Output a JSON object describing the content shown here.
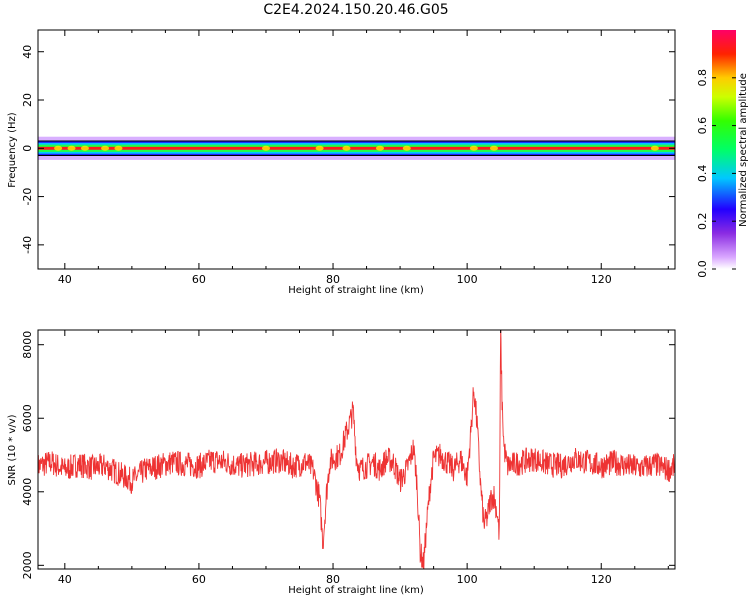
{
  "title": "C2E4.2024.150.20.46.G05",
  "colors": {
    "snr_line": "#ee3333",
    "frame": "#000000",
    "spectrum_band": "#00c8ff",
    "spectrum_core": "#ff0000"
  },
  "chart_data": [
    {
      "type": "heatmap",
      "xlabel": "Height of straight line (km)",
      "ylabel": "Frequency (Hz)",
      "xlim": [
        36,
        131
      ],
      "ylim": [
        -50,
        49
      ],
      "xticks": [
        40,
        60,
        80,
        100,
        120
      ],
      "yticks": [
        -40,
        -20,
        0,
        20,
        40
      ],
      "colorbar": {
        "label": "Normalized spectral amplitude",
        "range": [
          0,
          1
        ],
        "ticks": [
          "0.0",
          "0.2",
          "0.4",
          "0.6",
          "0.8"
        ],
        "colormap": "gist_rainbow_r"
      },
      "peak_frequency_hz": 0,
      "band": {
        "x_start": 36,
        "x_end": 131,
        "halfwidth_hz": 3
      },
      "wide_spots_km": [
        39,
        41,
        43,
        46,
        48,
        70,
        78,
        82,
        87,
        91,
        101,
        104,
        128
      ]
    },
    {
      "type": "line",
      "xlabel": "Height of straight line (km)",
      "ylabel": "SNR (10 * v/v)",
      "xlim": [
        36,
        131
      ],
      "ylim": [
        1900,
        8400
      ],
      "xticks": [
        40,
        60,
        80,
        100,
        120
      ],
      "yticks": [
        2000,
        4000,
        6000,
        8000
      ],
      "series": [
        {
          "x": [
            36,
            38,
            40,
            42,
            44,
            46,
            48,
            50,
            52,
            54,
            56,
            58,
            60,
            62,
            64,
            66,
            68,
            70,
            72,
            74,
            76,
            77,
            78,
            78.5,
            79,
            79.5,
            80,
            81,
            82,
            83,
            83.5,
            84,
            85,
            86,
            87,
            88,
            89,
            90,
            91,
            92,
            92.5,
            93,
            93.5,
            94,
            94.5,
            95,
            96,
            97,
            98,
            99,
            100,
            100.5,
            101,
            101.5,
            102,
            102.5,
            103,
            103.5,
            104,
            104.5,
            104.8,
            105,
            105.2,
            105.5,
            106,
            108,
            110,
            112,
            114,
            116,
            118,
            120,
            122,
            124,
            126,
            128,
            130,
            131
          ],
          "y": [
            4700,
            4800,
            4600,
            4750,
            4650,
            4700,
            4500,
            4300,
            4600,
            4700,
            4800,
            4750,
            4700,
            4850,
            4800,
            4700,
            4750,
            4800,
            4850,
            4700,
            4800,
            4600,
            3800,
            2600,
            3900,
            4800,
            4900,
            5000,
            5600,
            6200,
            4900,
            4600,
            4700,
            4800,
            4600,
            4900,
            4800,
            4300,
            4600,
            5200,
            4300,
            2400,
            2000,
            3200,
            4200,
            4900,
            5000,
            4800,
            4600,
            4900,
            4400,
            5500,
            6800,
            5800,
            4200,
            3100,
            3300,
            3800,
            3900,
            3400,
            2800,
            8400,
            6500,
            5200,
            4700,
            4800,
            4900,
            4750,
            4700,
            4900,
            4800,
            4700,
            4800,
            4700,
            4650,
            4750,
            4600,
            4700
          ]
        }
      ]
    }
  ]
}
